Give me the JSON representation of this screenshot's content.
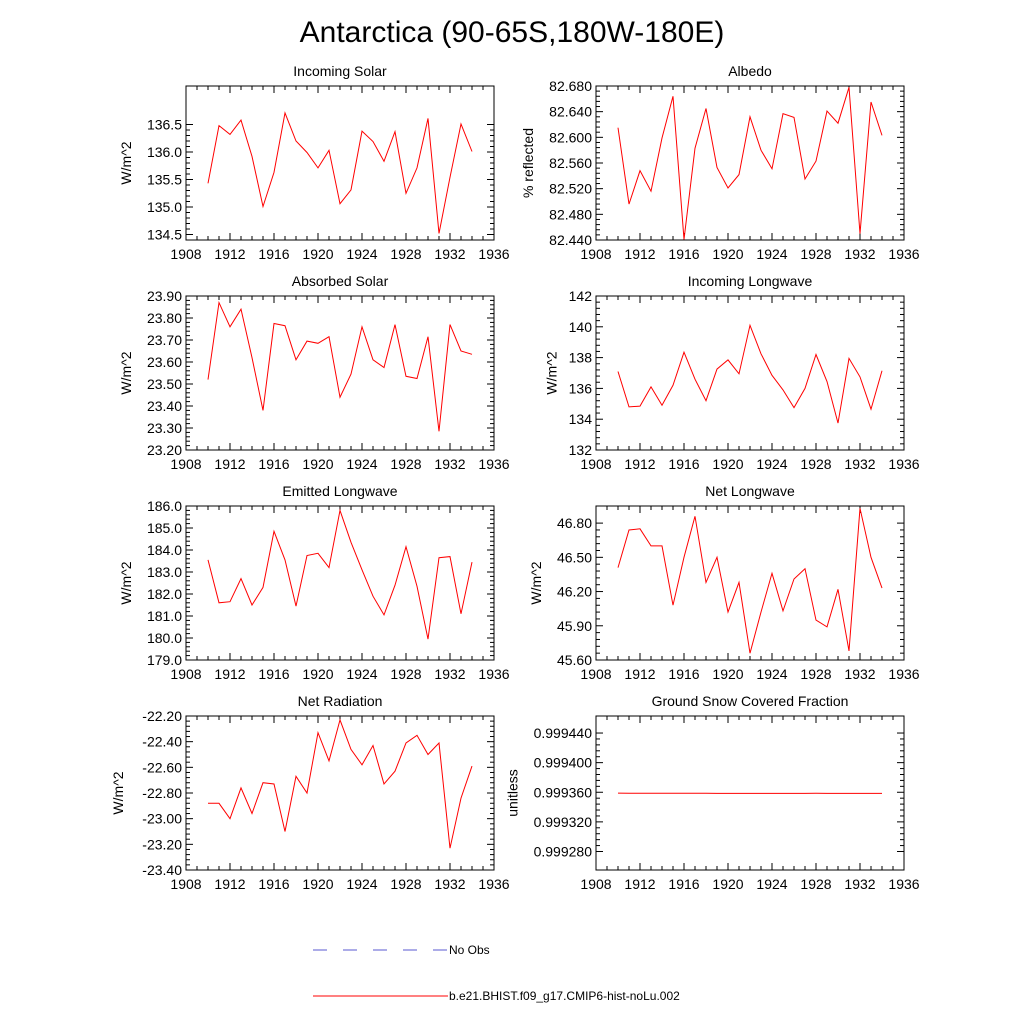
{
  "figure": {
    "title": "Antarctica (90-65S,180W-180E)"
  },
  "legend": {
    "entries": [
      {
        "label": "No Obs",
        "color": "#5a5ad0",
        "style": "dashed"
      },
      {
        "label": "b.e21.BHIST.f09_g17.CMIP6-hist-noLu.002",
        "color": "#ff0000",
        "style": "solid"
      }
    ]
  },
  "chart_data": [
    {
      "type": "line",
      "title": "Incoming Solar",
      "ylabel": "W/m^2",
      "xlim": [
        1908,
        1936
      ],
      "ylim": [
        134.4,
        137.2
      ],
      "xticks": [
        "1908",
        "1912",
        "1916",
        "1920",
        "1924",
        "1928",
        "1932",
        "1936"
      ],
      "yticks": [
        "134.5",
        "135.0",
        "135.5",
        "136.0",
        "136.5"
      ],
      "x": [
        1910,
        1911,
        1912,
        1913,
        1914,
        1915,
        1916,
        1917,
        1918,
        1919,
        1920,
        1921,
        1922,
        1923,
        1924,
        1925,
        1926,
        1927,
        1928,
        1929,
        1930,
        1931,
        1932,
        1933,
        1934
      ],
      "series": [
        {
          "name": "b.e21.BHIST.f09_g17.CMIP6-hist-noLu.002",
          "values": [
            135.43,
            136.48,
            136.32,
            136.58,
            135.92,
            135.01,
            135.63,
            136.71,
            136.2,
            135.99,
            135.71,
            136.03,
            135.06,
            135.31,
            136.38,
            136.19,
            135.83,
            136.37,
            135.25,
            135.71,
            136.61,
            134.52,
            135.54,
            136.51,
            136.01
          ],
          "color": "#ff0000"
        }
      ]
    },
    {
      "type": "line",
      "title": "Albedo",
      "ylabel": "% reflected",
      "xlim": [
        1908,
        1936
      ],
      "ylim": [
        82.44,
        82.68
      ],
      "xticks": [
        "1908",
        "1912",
        "1916",
        "1920",
        "1924",
        "1928",
        "1932",
        "1936"
      ],
      "yticks": [
        "82.440",
        "82.480",
        "82.520",
        "82.560",
        "82.600",
        "82.640",
        "82.680"
      ],
      "x": [
        1910,
        1911,
        1912,
        1913,
        1914,
        1915,
        1916,
        1917,
        1918,
        1919,
        1920,
        1921,
        1922,
        1923,
        1924,
        1925,
        1926,
        1927,
        1928,
        1929,
        1930,
        1931,
        1932,
        1933,
        1934
      ],
      "series": [
        {
          "name": "b.e21.BHIST.f09_g17.CMIP6-hist-noLu.002",
          "values": [
            82.615,
            82.496,
            82.548,
            82.516,
            82.599,
            82.664,
            82.441,
            82.583,
            82.645,
            82.553,
            82.521,
            82.542,
            82.632,
            82.58,
            82.551,
            82.637,
            82.631,
            82.535,
            82.563,
            82.641,
            82.622,
            82.678,
            82.45,
            82.655,
            82.603
          ],
          "color": "#ff0000"
        }
      ]
    },
    {
      "type": "line",
      "title": "Absorbed Solar",
      "ylabel": "W/m^2",
      "xlim": [
        1908,
        1936
      ],
      "ylim": [
        23.2,
        23.9
      ],
      "xticks": [
        "1908",
        "1912",
        "1916",
        "1920",
        "1924",
        "1928",
        "1932",
        "1936"
      ],
      "yticks": [
        "23.20",
        "23.30",
        "23.40",
        "23.50",
        "23.60",
        "23.70",
        "23.80",
        "23.90"
      ],
      "x": [
        1910,
        1911,
        1912,
        1913,
        1914,
        1915,
        1916,
        1917,
        1918,
        1919,
        1920,
        1921,
        1922,
        1923,
        1924,
        1925,
        1926,
        1927,
        1928,
        1929,
        1930,
        1931,
        1932,
        1933,
        1934
      ],
      "series": [
        {
          "name": "b.e21.BHIST.f09_g17.CMIP6-hist-noLu.002",
          "values": [
            23.52,
            23.87,
            23.76,
            23.84,
            23.62,
            23.38,
            23.775,
            23.765,
            23.61,
            23.695,
            23.685,
            23.715,
            23.44,
            23.545,
            23.76,
            23.61,
            23.575,
            23.77,
            23.535,
            23.525,
            23.715,
            23.285,
            23.77,
            23.65,
            23.635
          ],
          "color": "#ff0000"
        }
      ]
    },
    {
      "type": "line",
      "title": "Incoming Longwave",
      "ylabel": "W/m^2",
      "xlim": [
        1908,
        1936
      ],
      "ylim": [
        132,
        142
      ],
      "xticks": [
        "1908",
        "1912",
        "1916",
        "1920",
        "1924",
        "1928",
        "1932",
        "1936"
      ],
      "yticks": [
        "132",
        "134",
        "136",
        "138",
        "140",
        "142"
      ],
      "x": [
        1910,
        1911,
        1912,
        1913,
        1914,
        1915,
        1916,
        1917,
        1918,
        1919,
        1920,
        1921,
        1922,
        1923,
        1924,
        1925,
        1926,
        1927,
        1928,
        1929,
        1930,
        1931,
        1932,
        1933,
        1934
      ],
      "series": [
        {
          "name": "b.e21.BHIST.f09_g17.CMIP6-hist-noLu.002",
          "values": [
            137.1,
            134.8,
            134.85,
            136.1,
            134.9,
            136.2,
            138.35,
            136.6,
            135.2,
            137.25,
            137.85,
            136.95,
            140.1,
            138.25,
            136.85,
            135.9,
            134.75,
            136.0,
            138.2,
            136.45,
            133.75,
            137.95,
            136.75,
            134.65,
            137.15
          ],
          "color": "#ff0000"
        }
      ]
    },
    {
      "type": "line",
      "title": "Emitted Longwave",
      "ylabel": "W/m^2",
      "xlim": [
        1908,
        1936
      ],
      "ylim": [
        179,
        186
      ],
      "xticks": [
        "1908",
        "1912",
        "1916",
        "1920",
        "1924",
        "1928",
        "1932",
        "1936"
      ],
      "yticks": [
        "179.0",
        "180.0",
        "181.0",
        "182.0",
        "183.0",
        "184.0",
        "185.0",
        "186.0"
      ],
      "x": [
        1910,
        1911,
        1912,
        1913,
        1914,
        1915,
        1916,
        1917,
        1918,
        1919,
        1920,
        1921,
        1922,
        1923,
        1924,
        1925,
        1926,
        1927,
        1928,
        1929,
        1930,
        1931,
        1932,
        1933,
        1934
      ],
      "series": [
        {
          "name": "b.e21.BHIST.f09_g17.CMIP6-hist-noLu.002",
          "values": [
            183.55,
            181.6,
            181.65,
            182.7,
            181.5,
            182.3,
            184.85,
            183.55,
            181.45,
            183.75,
            183.85,
            183.2,
            185.8,
            184.35,
            183.1,
            181.9,
            181.05,
            182.4,
            184.15,
            182.35,
            179.95,
            183.65,
            183.7,
            181.1,
            183.45
          ],
          "color": "#ff0000"
        }
      ]
    },
    {
      "type": "line",
      "title": "Net Longwave",
      "ylabel": "W/m^2",
      "xlim": [
        1908,
        1936
      ],
      "ylim": [
        45.6,
        46.95
      ],
      "xticks": [
        "1908",
        "1912",
        "1916",
        "1920",
        "1924",
        "1928",
        "1932",
        "1936"
      ],
      "yticks": [
        "45.60",
        "45.90",
        "46.20",
        "46.50",
        "46.80"
      ],
      "x": [
        1910,
        1911,
        1912,
        1913,
        1914,
        1915,
        1916,
        1917,
        1918,
        1919,
        1920,
        1921,
        1922,
        1923,
        1924,
        1925,
        1926,
        1927,
        1928,
        1929,
        1930,
        1931,
        1932,
        1933,
        1934
      ],
      "series": [
        {
          "name": "b.e21.BHIST.f09_g17.CMIP6-hist-noLu.002",
          "values": [
            46.41,
            46.74,
            46.75,
            46.6,
            46.6,
            46.08,
            46.5,
            46.86,
            46.28,
            46.5,
            46.02,
            46.28,
            45.66,
            46.02,
            46.36,
            46.03,
            46.31,
            46.4,
            45.95,
            45.89,
            46.22,
            45.68,
            46.93,
            46.5,
            46.23
          ],
          "color": "#ff0000"
        }
      ]
    },
    {
      "type": "line",
      "title": "Net Radiation",
      "ylabel": "W/m^2",
      "xlim": [
        1908,
        1936
      ],
      "ylim": [
        -23.4,
        -22.2
      ],
      "xticks": [
        "1908",
        "1912",
        "1916",
        "1920",
        "1924",
        "1928",
        "1932",
        "1936"
      ],
      "yticks": [
        "-23.40",
        "-23.20",
        "-23.00",
        "-22.80",
        "-22.60",
        "-22.40",
        "-22.20"
      ],
      "x": [
        1910,
        1911,
        1912,
        1913,
        1914,
        1915,
        1916,
        1917,
        1918,
        1919,
        1920,
        1921,
        1922,
        1923,
        1924,
        1925,
        1926,
        1927,
        1928,
        1929,
        1930,
        1931,
        1932,
        1933,
        1934
      ],
      "series": [
        {
          "name": "b.e21.BHIST.f09_g17.CMIP6-hist-noLu.002",
          "values": [
            -22.88,
            -22.88,
            -23.0,
            -22.76,
            -22.96,
            -22.72,
            -22.73,
            -23.1,
            -22.67,
            -22.8,
            -22.33,
            -22.55,
            -22.23,
            -22.46,
            -22.58,
            -22.43,
            -22.73,
            -22.63,
            -22.41,
            -22.35,
            -22.5,
            -22.41,
            -23.23,
            -22.84,
            -22.59
          ],
          "color": "#ff0000"
        }
      ]
    },
    {
      "type": "line",
      "title": "Ground Snow Covered Fraction",
      "ylabel": "unitless",
      "xlim": [
        1908,
        1936
      ],
      "ylim": [
        0.999255,
        0.999463
      ],
      "xticks": [
        "1908",
        "1912",
        "1916",
        "1920",
        "1924",
        "1928",
        "1932",
        "1936"
      ],
      "yticks": [
        "0.999280",
        "0.999320",
        "0.999360",
        "0.999400",
        "0.999440"
      ],
      "x": [
        1910,
        1911,
        1912,
        1913,
        1914,
        1915,
        1916,
        1917,
        1918,
        1919,
        1920,
        1921,
        1922,
        1923,
        1924,
        1925,
        1926,
        1927,
        1928,
        1929,
        1930,
        1931,
        1932,
        1933,
        1934
      ],
      "series": [
        {
          "name": "b.e21.BHIST.f09_g17.CMIP6-hist-noLu.002",
          "values": [
            0.9993588,
            0.9993587,
            0.9993587,
            0.9993586,
            0.9993586,
            0.9993586,
            0.9993586,
            0.9993586,
            0.9993586,
            0.9993585,
            0.9993585,
            0.9993585,
            0.9993585,
            0.9993585,
            0.9993585,
            0.9993585,
            0.9993585,
            0.9993585,
            0.9993586,
            0.9993585,
            0.9993585,
            0.9993585,
            0.9993584,
            0.9993584,
            0.9993584
          ],
          "color": "#ff0000"
        }
      ]
    }
  ]
}
